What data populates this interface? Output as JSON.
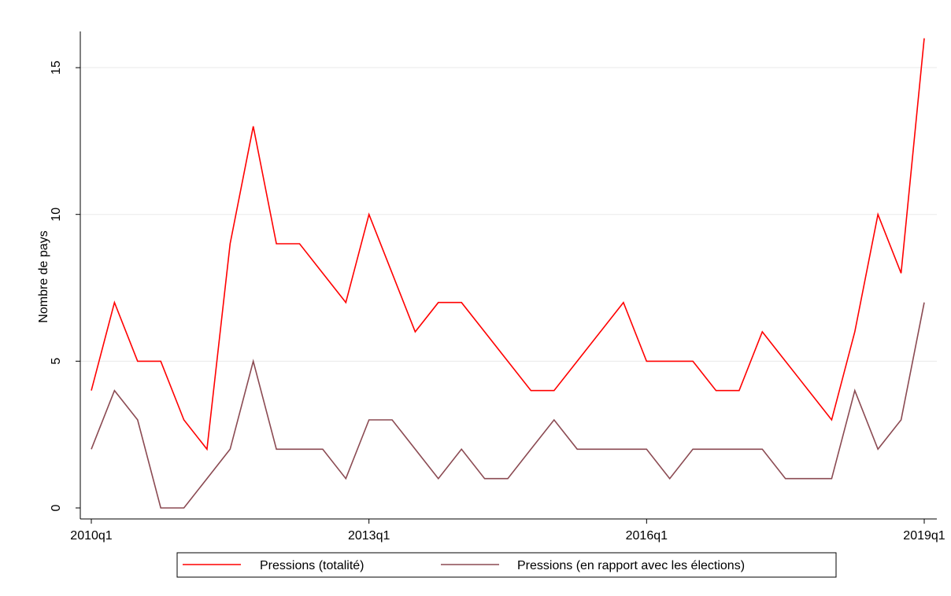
{
  "chart_data": {
    "type": "line",
    "title": "",
    "xlabel": "",
    "ylabel": "Nombre de pays",
    "x": [
      "2010q1",
      "2010q2",
      "2010q3",
      "2010q4",
      "2011q1",
      "2011q2",
      "2011q3",
      "2011q4",
      "2012q1",
      "2012q2",
      "2012q3",
      "2012q4",
      "2013q1",
      "2013q2",
      "2013q3",
      "2013q4",
      "2014q1",
      "2014q2",
      "2014q3",
      "2014q4",
      "2015q1",
      "2015q2",
      "2015q3",
      "2015q4",
      "2016q1",
      "2016q2",
      "2016q3",
      "2016q4",
      "2017q1",
      "2017q2",
      "2017q3",
      "2017q4",
      "2018q1",
      "2018q2",
      "2018q3",
      "2018q4",
      "2019q1"
    ],
    "xticks": [
      "2010q1",
      "2013q1",
      "2016q1",
      "2019q1"
    ],
    "ylim": [
      0,
      16
    ],
    "yticks": [
      0,
      5,
      10,
      15
    ],
    "grid": true,
    "legend_position": "bottom",
    "series": [
      {
        "name": "Pressions (totalité)",
        "color": "#ff0000",
        "values": [
          4,
          7,
          5,
          5,
          3,
          2,
          9,
          13,
          9,
          9,
          8,
          7,
          10,
          8,
          6,
          7,
          7,
          6,
          5,
          4,
          4,
          5,
          6,
          7,
          5,
          5,
          5,
          4,
          4,
          6,
          5,
          4,
          3,
          6,
          10,
          8,
          16
        ]
      },
      {
        "name": "Pressions (en rapport avec les élections)",
        "color": "#8b4a52",
        "values": [
          2,
          4,
          3,
          0,
          0,
          1,
          2,
          5,
          2,
          2,
          2,
          1,
          3,
          3,
          2,
          1,
          2,
          1,
          1,
          2,
          3,
          2,
          2,
          2,
          2,
          1,
          2,
          2,
          2,
          2,
          1,
          1,
          1,
          4,
          2,
          3,
          7
        ]
      }
    ]
  }
}
